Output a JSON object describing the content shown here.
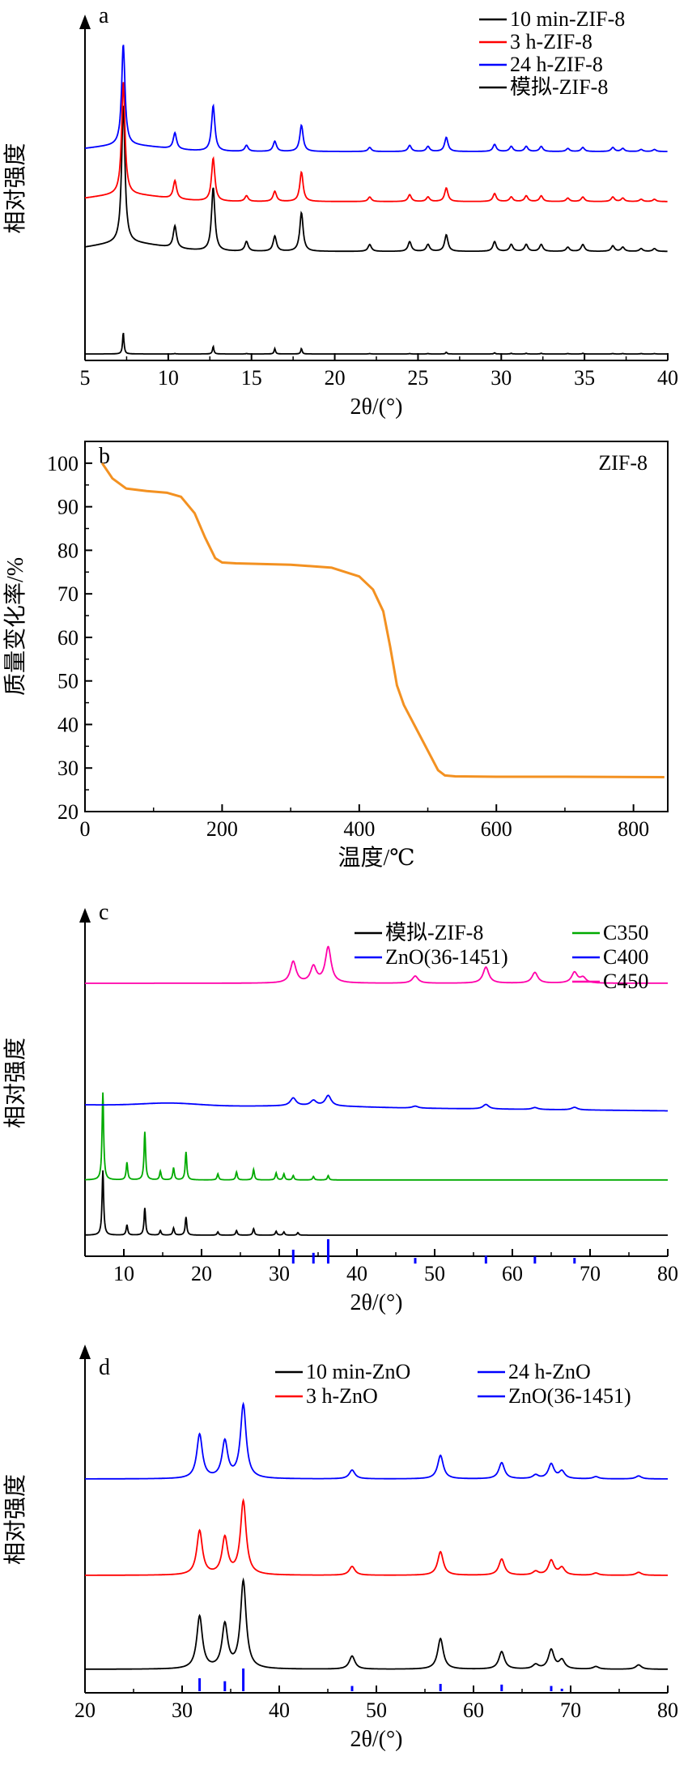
{
  "chart_data": [
    {
      "panel_label": "a",
      "type": "line",
      "xlabel": "2θ/(°)",
      "ylabel": "相对强度",
      "xlim": [
        5,
        40
      ],
      "xticks": [
        5,
        10,
        15,
        20,
        25,
        30,
        35,
        40
      ],
      "legend_position": "top-right",
      "peaks": [
        7.3,
        10.4,
        12.7,
        14.7,
        16.4,
        18.0,
        22.1,
        24.5,
        25.6,
        26.7,
        29.6,
        30.6,
        31.5,
        32.4,
        34.0,
        34.9,
        36.7,
        37.3,
        38.4,
        39.2
      ],
      "series": [
        {
          "name": "10 min-ZIF-8",
          "color": "#000000",
          "offset": 2,
          "scale": 1.0,
          "baseline_hump": true,
          "values": [
            1.0,
            0.16,
            0.46,
            0.07,
            0.11,
            0.28,
            0.05,
            0.07,
            0.05,
            0.12,
            0.07,
            0.05,
            0.05,
            0.05,
            0.03,
            0.05,
            0.04,
            0.03,
            0.02,
            0.02
          ]
        },
        {
          "name": "3 h-ZIF-8",
          "color": "#ff0000",
          "offset": 3,
          "scale": 0.85,
          "baseline_hump": true,
          "values": [
            1.0,
            0.16,
            0.38,
            0.05,
            0.09,
            0.26,
            0.04,
            0.06,
            0.04,
            0.12,
            0.07,
            0.04,
            0.05,
            0.05,
            0.03,
            0.04,
            0.04,
            0.03,
            0.02,
            0.02
          ]
        },
        {
          "name": "24 h-ZIF-8",
          "color": "#0000ff",
          "offset": 4,
          "scale": 0.85,
          "baseline_hump": true,
          "values": [
            1.0,
            0.16,
            0.45,
            0.06,
            0.1,
            0.26,
            0.04,
            0.06,
            0.05,
            0.14,
            0.07,
            0.05,
            0.05,
            0.05,
            0.03,
            0.04,
            0.04,
            0.03,
            0.02,
            0.02
          ]
        },
        {
          "name": "模拟-ZIF-8",
          "color": "#000000",
          "offset": 0,
          "scale": 0.55,
          "baseline_hump": false,
          "values": [
            1.0,
            0.02,
            0.35,
            0.02,
            0.25,
            0.25,
            0.02,
            0.02,
            0.02,
            0.08,
            0.05,
            0.03,
            0.03,
            0.03,
            0.02,
            0.03,
            0.02,
            0.02,
            0.02,
            0.02
          ]
        }
      ]
    },
    {
      "panel_label": "b",
      "type": "line",
      "title": "ZIF-8",
      "xlabel": "温度/℃",
      "ylabel": "质量变化率/%",
      "xlim": [
        0,
        850
      ],
      "ylim": [
        20,
        105
      ],
      "xticks": [
        0,
        200,
        400,
        600,
        800
      ],
      "yticks": [
        20,
        30,
        40,
        50,
        60,
        70,
        80,
        90,
        100
      ],
      "series": [
        {
          "name": "",
          "color": "#f39121",
          "x": [
            25,
            40,
            60,
            90,
            120,
            140,
            160,
            175,
            190,
            200,
            220,
            300,
            360,
            400,
            420,
            435,
            445,
            455,
            465,
            480,
            500,
            515,
            525,
            540,
            600,
            700,
            845
          ],
          "y": [
            100,
            96.5,
            94.2,
            93.6,
            93.2,
            92.3,
            88.5,
            83,
            78.2,
            77.2,
            77.0,
            76.7,
            76.0,
            74.0,
            71.0,
            66.0,
            58.0,
            49.0,
            44.5,
            40.0,
            34.0,
            29.5,
            28.3,
            28.1,
            28.0,
            28.0,
            27.9
          ]
        }
      ]
    },
    {
      "panel_label": "c",
      "type": "line",
      "xlabel": "2θ/(°)",
      "ylabel": "相对强度",
      "xlim": [
        5,
        80
      ],
      "xticks": [
        10,
        20,
        30,
        40,
        50,
        60,
        70,
        80
      ],
      "legend_position": "top-right",
      "series": [
        {
          "name": "模拟-ZIF-8",
          "color": "#000000",
          "kind": "zif",
          "offset": 0,
          "scale": 1.6,
          "peaks": [
            7.3,
            10.4,
            12.7,
            14.7,
            16.4,
            18.0,
            22.1,
            24.5,
            26.7,
            29.6,
            30.6,
            32.4
          ],
          "values": [
            1.0,
            0.16,
            0.42,
            0.07,
            0.11,
            0.28,
            0.05,
            0.07,
            0.1,
            0.06,
            0.05,
            0.04
          ]
        },
        {
          "name": "C350",
          "color": "#00aa00",
          "kind": "zif",
          "offset": 1.6,
          "scale": 1.4,
          "peaks": [
            7.3,
            10.4,
            12.7,
            14.7,
            16.4,
            18.0,
            22.1,
            24.5,
            26.7,
            29.6,
            30.6,
            31.8,
            34.4,
            36.3
          ],
          "values": [
            1.0,
            0.2,
            0.55,
            0.1,
            0.14,
            0.32,
            0.07,
            0.09,
            0.12,
            0.08,
            0.07,
            0.05,
            0.04,
            0.05
          ]
        },
        {
          "name": "C400",
          "color": "#0000ff",
          "kind": "zno",
          "offset": 3.3,
          "scale": 0.2,
          "peaks": [
            31.8,
            34.4,
            36.3,
            47.5,
            56.6,
            62.9,
            68.0
          ],
          "values": [
            0.6,
            0.4,
            0.8,
            0.15,
            0.35,
            0.15,
            0.2
          ]
        },
        {
          "name": "C450",
          "color": "#ff00aa",
          "kind": "zno",
          "offset": 5.3,
          "scale": 0.75,
          "peaks": [
            31.8,
            34.4,
            36.3,
            47.5,
            56.6,
            62.9,
            68.0,
            69.1
          ],
          "values": [
            0.6,
            0.45,
            1.0,
            0.2,
            0.45,
            0.3,
            0.3,
            0.15
          ]
        },
        {
          "name": "ZnO(36-1451)",
          "color": "#0000ff",
          "kind": "reference",
          "peaks": [
            31.8,
            34.4,
            36.3,
            47.5,
            56.6,
            62.9,
            68.0
          ],
          "values": [
            0.57,
            0.44,
            1.0,
            0.23,
            0.32,
            0.29,
            0.23
          ]
        }
      ]
    },
    {
      "panel_label": "d",
      "type": "line",
      "xlabel": "2θ/(°)",
      "ylabel": "相对强度",
      "xlim": [
        20,
        80
      ],
      "xticks": [
        20,
        30,
        40,
        50,
        60,
        70,
        80
      ],
      "legend_position": "top-right",
      "peaks": [
        31.8,
        34.4,
        36.3,
        47.5,
        56.6,
        62.9,
        66.4,
        68.0,
        69.1,
        72.6,
        77.0
      ],
      "series": [
        {
          "name": "10 min-ZnO",
          "color": "#000000",
          "offset": 0,
          "scale": 1.0,
          "values": [
            0.6,
            0.5,
            1.0,
            0.15,
            0.35,
            0.2,
            0.05,
            0.22,
            0.1,
            0.03,
            0.05
          ]
        },
        {
          "name": "3 h-ZnO",
          "color": "#ff0000",
          "offset": 1.15,
          "scale": 0.8,
          "values": [
            0.6,
            0.5,
            1.0,
            0.12,
            0.32,
            0.22,
            0.05,
            0.2,
            0.1,
            0.03,
            0.04
          ]
        },
        {
          "name": "24 h-ZnO",
          "color": "#0000ff",
          "offset": 2.3,
          "scale": 0.8,
          "values": [
            0.6,
            0.5,
            1.0,
            0.12,
            0.32,
            0.22,
            0.05,
            0.2,
            0.1,
            0.03,
            0.04
          ]
        },
        {
          "name": "ZnO(36-1451)",
          "color": "#0000ff",
          "kind": "reference",
          "peaks": [
            31.8,
            34.4,
            36.3,
            47.5,
            56.6,
            62.9,
            68.0,
            69.1
          ],
          "values": [
            0.57,
            0.44,
            1.0,
            0.23,
            0.32,
            0.29,
            0.23,
            0.11
          ]
        }
      ]
    }
  ]
}
